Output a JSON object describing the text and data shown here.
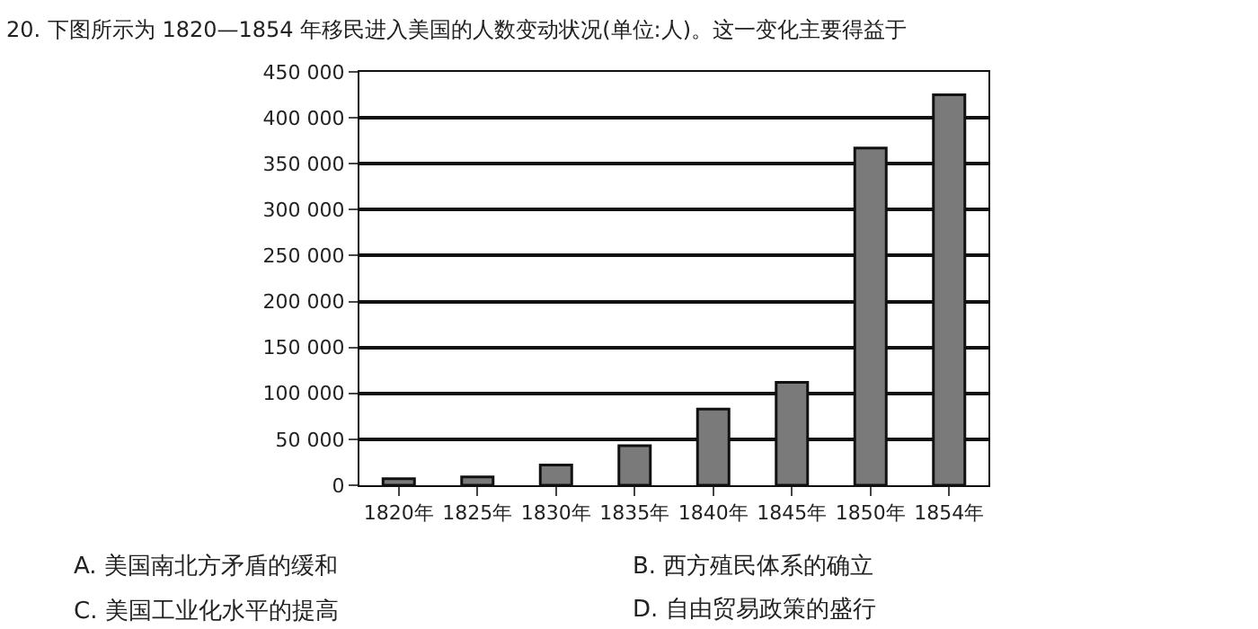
{
  "chart_data": {
    "type": "bar",
    "title": "20. 下图所示为 1820—1854 年移民进入美国的人数变动状况(单位:人)。这一变化主要得益于",
    "categories": [
      "1820年",
      "1825年",
      "1830年",
      "1835年",
      "1840年",
      "1845年",
      "1850年",
      "1854年"
    ],
    "values": [
      7000,
      9000,
      22000,
      43000,
      83000,
      112000,
      367000,
      425000
    ],
    "color": "#7a7a7a",
    "ylim": [
      0,
      450000
    ],
    "yticks": [
      0,
      {
        "value": 50000,
        "label": "50 000"
      },
      {
        "value": 100000,
        "label": "100 000"
      },
      {
        "value": 150000,
        "label": "150 000"
      },
      {
        "value": 200000,
        "label": "200 000"
      },
      {
        "value": 250000,
        "label": "250 000"
      },
      {
        "value": 300000,
        "label": "300 000"
      },
      {
        "value": 350000,
        "label": "350 000"
      },
      {
        "value": 400000,
        "label": "400 000"
      },
      {
        "value": 450000,
        "label": "450 000"
      }
    ],
    "grid": "y",
    "annotations": [
      "A. 美国南北方矛盾的缓和",
      "B. 西方殖民体系的确立",
      "C. 美国工业化水平的提高",
      "D. 自由贸易政策的盛行"
    ]
  }
}
